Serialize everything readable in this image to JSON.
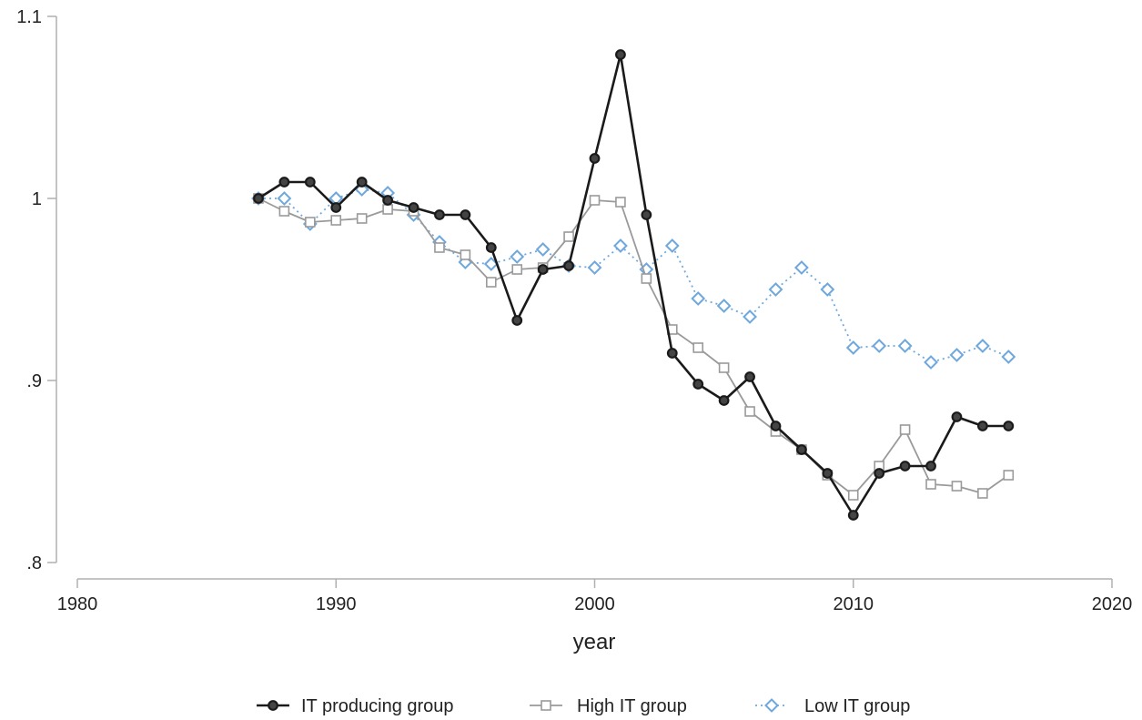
{
  "chart_data": {
    "type": "line",
    "xlabel": "year",
    "ylabel": "",
    "xlim": [
      1980,
      2020
    ],
    "ylim": [
      0.8,
      1.1
    ],
    "x_ticks": [
      {
        "value": 1980,
        "label": "1980"
      },
      {
        "value": 1990,
        "label": "1990"
      },
      {
        "value": 2000,
        "label": "2000"
      },
      {
        "value": 2010,
        "label": "2010"
      },
      {
        "value": 2020,
        "label": "2020"
      }
    ],
    "y_ticks": [
      {
        "value": 0.8,
        "label": ".8"
      },
      {
        "value": 0.9,
        "label": ".9"
      },
      {
        "value": 1.0,
        "label": "1"
      },
      {
        "value": 1.1,
        "label": "1.1"
      }
    ],
    "grid": false,
    "legend_position": "bottom",
    "x": [
      1987,
      1988,
      1989,
      1990,
      1991,
      1992,
      1993,
      1994,
      1995,
      1996,
      1997,
      1998,
      1999,
      2000,
      2001,
      2002,
      2003,
      2004,
      2005,
      2006,
      2007,
      2008,
      2009,
      2010,
      2011,
      2012,
      2013,
      2014,
      2015,
      2016
    ],
    "series": [
      {
        "name": "IT producing group",
        "color": "#1a1a1a",
        "marker": "circle",
        "line_style": "solid",
        "values": [
          1.0,
          1.009,
          1.009,
          0.995,
          1.009,
          0.999,
          0.995,
          0.991,
          0.991,
          0.973,
          0.933,
          0.961,
          0.963,
          1.022,
          1.079,
          0.991,
          0.915,
          0.898,
          0.889,
          0.902,
          0.875,
          0.862,
          0.849,
          0.826,
          0.849,
          0.853,
          0.853,
          0.88,
          0.875,
          0.875
        ]
      },
      {
        "name": "High IT group",
        "color": "#9a9a9a",
        "marker": "square",
        "line_style": "solid",
        "values": [
          1.0,
          0.993,
          0.987,
          0.988,
          0.989,
          0.994,
          0.993,
          0.973,
          0.969,
          0.954,
          0.961,
          0.962,
          0.979,
          0.999,
          0.998,
          0.956,
          0.928,
          0.918,
          0.907,
          0.883,
          0.872,
          0.862,
          0.848,
          0.837,
          0.853,
          0.873,
          0.843,
          0.842,
          0.838,
          0.848
        ]
      },
      {
        "name": "Low IT group",
        "color": "#6fa8dc",
        "marker": "diamond",
        "line_style": "dotted",
        "values": [
          1.0,
          1.0,
          0.986,
          1.0,
          1.005,
          1.003,
          0.991,
          0.976,
          0.965,
          0.964,
          0.968,
          0.972,
          0.963,
          0.962,
          0.974,
          0.961,
          0.974,
          0.945,
          0.941,
          0.935,
          0.95,
          0.962,
          0.95,
          0.918,
          0.919,
          0.919,
          0.91,
          0.914,
          0.919,
          0.913
        ]
      }
    ]
  }
}
